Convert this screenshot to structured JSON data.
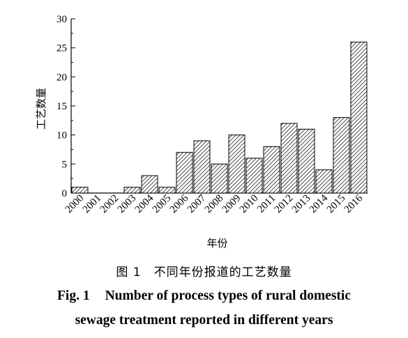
{
  "chart_data": {
    "type": "bar",
    "categories": [
      "2000",
      "2001",
      "2002",
      "2003",
      "2004",
      "2005",
      "2006",
      "2007",
      "2008",
      "2009",
      "2010",
      "2011",
      "2012",
      "2013",
      "2014",
      "2015",
      "2016"
    ],
    "values": [
      1,
      0,
      0,
      1,
      3,
      1,
      7,
      9,
      5,
      10,
      6,
      8,
      12,
      11,
      4,
      13,
      26
    ],
    "xlabel": "年份",
    "ylabel": "工艺数量",
    "ylim": [
      0,
      30
    ],
    "yticks": [
      0,
      5,
      10,
      15,
      20,
      25,
      30
    ],
    "grid": false,
    "bar_fill": "diagonal-hatch",
    "bar_color": "#000000"
  },
  "caption": {
    "cn_label": "图 1",
    "cn_text": "不同年份报道的工艺数量",
    "en_label": "Fig. 1",
    "en_line1": "Number of process types of rural domestic",
    "en_line2": "sewage treatment reported in different years"
  }
}
